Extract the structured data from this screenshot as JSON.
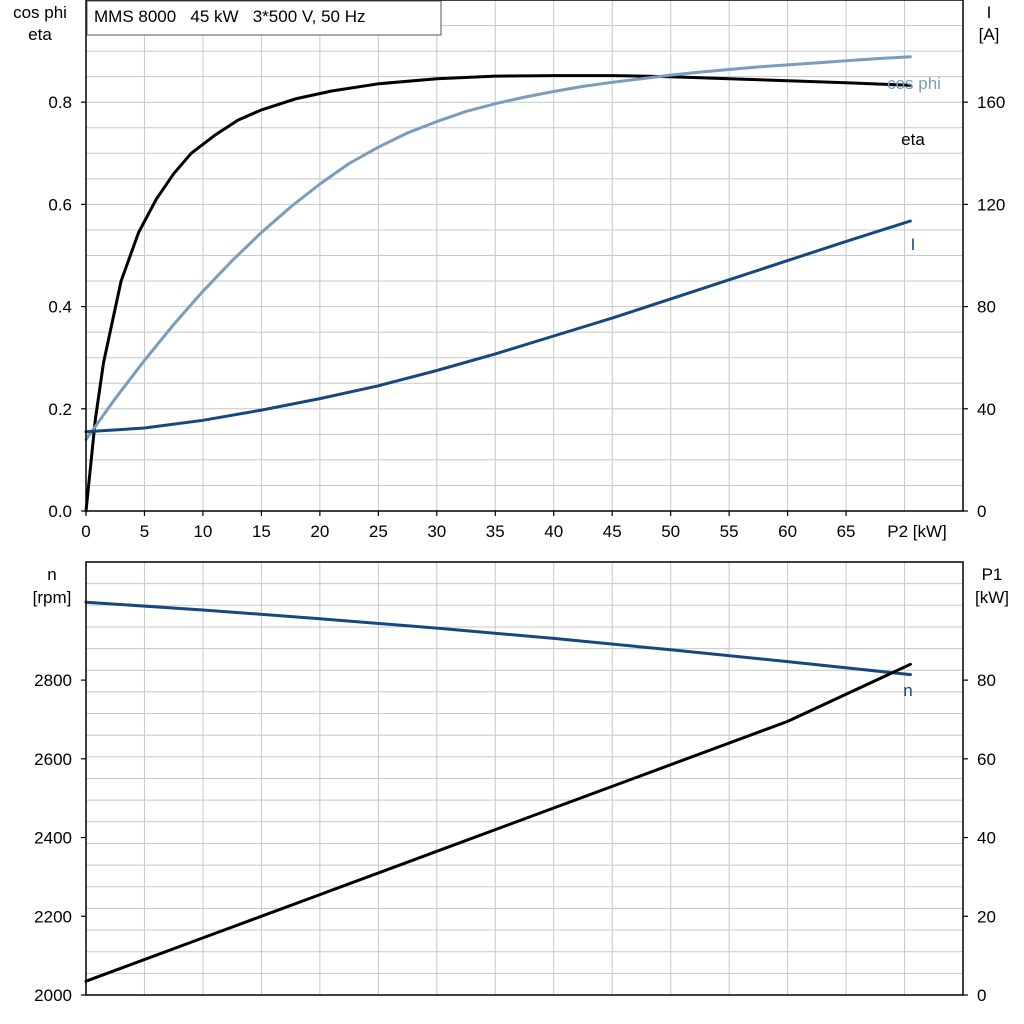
{
  "chart_data": [
    {
      "type": "line",
      "title": "MMS 8000   45 kW   3*500 V, 50 Hz",
      "xlabel": "P2 [kW]",
      "xlim": [
        0,
        75
      ],
      "x_ticks": [
        0,
        5,
        10,
        15,
        20,
        25,
        30,
        35,
        40,
        45,
        50,
        55,
        60,
        65
      ],
      "ylabel_left": [
        "cos phi",
        "eta"
      ],
      "ylim_left": [
        0,
        1.0
      ],
      "y_ticks_left": [
        "0.0",
        "0.2",
        "0.4",
        "0.6",
        "0.8"
      ],
      "ylabel_right": [
        "I",
        "[A]"
      ],
      "ylim_right": [
        0,
        200
      ],
      "y_ticks_right": [
        "0",
        "40",
        "80",
        "120",
        "160"
      ],
      "grid": true,
      "series": [
        {
          "name": "eta",
          "axis": "left",
          "color": "#000000",
          "x": [
            0,
            0.8,
            1.5,
            3,
            4.5,
            6,
            7.5,
            9,
            11,
            13,
            15,
            18,
            21,
            25,
            30,
            35,
            40,
            45,
            50,
            55,
            60,
            65,
            70.5
          ],
          "y": [
            0.0,
            0.18,
            0.29,
            0.45,
            0.545,
            0.61,
            0.66,
            0.7,
            0.735,
            0.765,
            0.785,
            0.807,
            0.822,
            0.836,
            0.846,
            0.851,
            0.852,
            0.852,
            0.85,
            0.846,
            0.842,
            0.838,
            0.833
          ]
        },
        {
          "name": "cos phi",
          "axis": "left",
          "color": "#7a9cbd",
          "x": [
            0,
            2.5,
            5,
            7.5,
            10,
            12.5,
            15,
            17.5,
            20,
            22.5,
            25,
            27.5,
            30,
            32.5,
            35,
            37.5,
            40,
            42.5,
            45,
            47.5,
            50,
            52.5,
            55,
            57.5,
            60,
            62.5,
            65,
            67.5,
            70.5
          ],
          "y": [
            0.14,
            0.22,
            0.295,
            0.365,
            0.43,
            0.49,
            0.545,
            0.595,
            0.64,
            0.68,
            0.712,
            0.74,
            0.762,
            0.782,
            0.797,
            0.81,
            0.821,
            0.831,
            0.839,
            0.846,
            0.853,
            0.859,
            0.864,
            0.869,
            0.873,
            0.877,
            0.881,
            0.885,
            0.889
          ]
        },
        {
          "name": "I",
          "axis": "right",
          "color": "#15497e",
          "x": [
            0,
            5,
            10,
            15,
            20,
            25,
            30,
            35,
            40,
            45,
            50,
            55,
            60,
            65,
            70.5
          ],
          "y": [
            31,
            32.5,
            35.5,
            39.5,
            44,
            49,
            55,
            61.5,
            68.5,
            75.5,
            83,
            90.5,
            98,
            105.5,
            113.5
          ]
        }
      ]
    },
    {
      "type": "line",
      "title": "",
      "xlabel": "",
      "xlim": [
        0,
        75
      ],
      "ylabel_left": [
        "n",
        "[rpm]"
      ],
      "ylim_left": [
        2000,
        3100
      ],
      "y_ticks_left": [
        "2000",
        "2200",
        "2400",
        "2600",
        "2800"
      ],
      "ylabel_right": [
        "P1",
        "[kW]"
      ],
      "ylim_right": [
        0,
        110
      ],
      "y_ticks_right": [
        "0",
        "20",
        "40",
        "60",
        "80"
      ],
      "grid": true,
      "series": [
        {
          "name": "n",
          "axis": "left",
          "color": "#15497e",
          "x": [
            0,
            10,
            20,
            30,
            40,
            50,
            60,
            70.5
          ],
          "y": [
            2998,
            2978,
            2956,
            2932,
            2906,
            2877,
            2847,
            2814
          ]
        },
        {
          "name": "P1",
          "axis": "right",
          "color": "#000000",
          "x": [
            0,
            10,
            20,
            30,
            40,
            50,
            60,
            70.5
          ],
          "y": [
            3.5,
            14.5,
            25.5,
            36.5,
            47.5,
            58.5,
            69.5,
            84
          ]
        }
      ]
    }
  ]
}
